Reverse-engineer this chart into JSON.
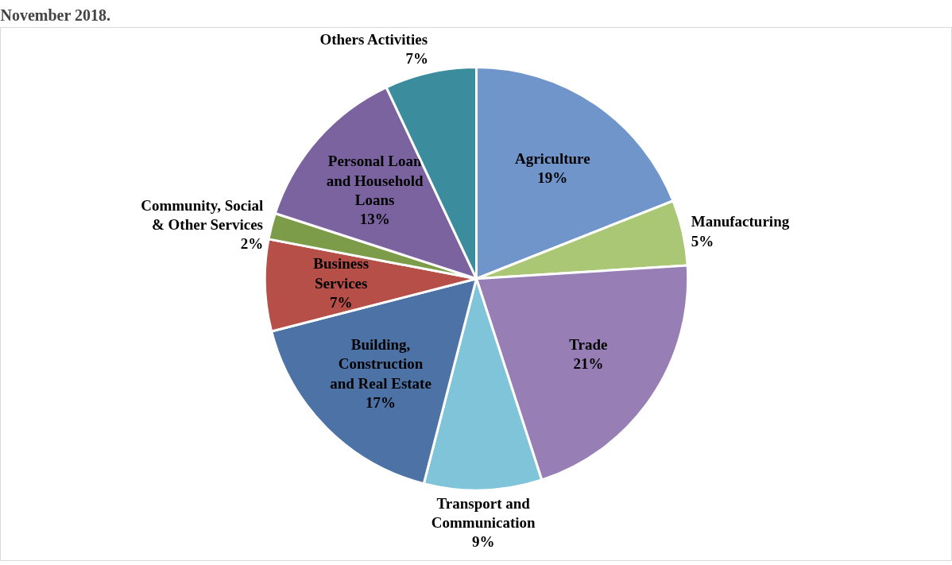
{
  "chart_data": {
    "type": "pie",
    "title": "November 2018.",
    "categories": [
      "Agriculture",
      "Manufacturing",
      "Trade",
      "Transport and Communication",
      "Building, Construction and Real Estate",
      "Business Services",
      "Community, Social & Other Services",
      "Personal Loan and Household Loans",
      "Others Activities"
    ],
    "values": [
      19,
      5,
      21,
      9,
      17,
      7,
      2,
      13,
      7
    ],
    "value_labels": [
      "19%",
      "5%",
      "21%",
      "9%",
      "17%",
      "7%",
      "2%",
      "13%",
      "7%"
    ],
    "colors": [
      "#6f95cb",
      "#a9c774",
      "#977fb6",
      "#7fc4d8",
      "#4d72a6",
      "#b54f48",
      "#7d9c4a",
      "#7b63a0",
      "#3b8c9c"
    ]
  }
}
